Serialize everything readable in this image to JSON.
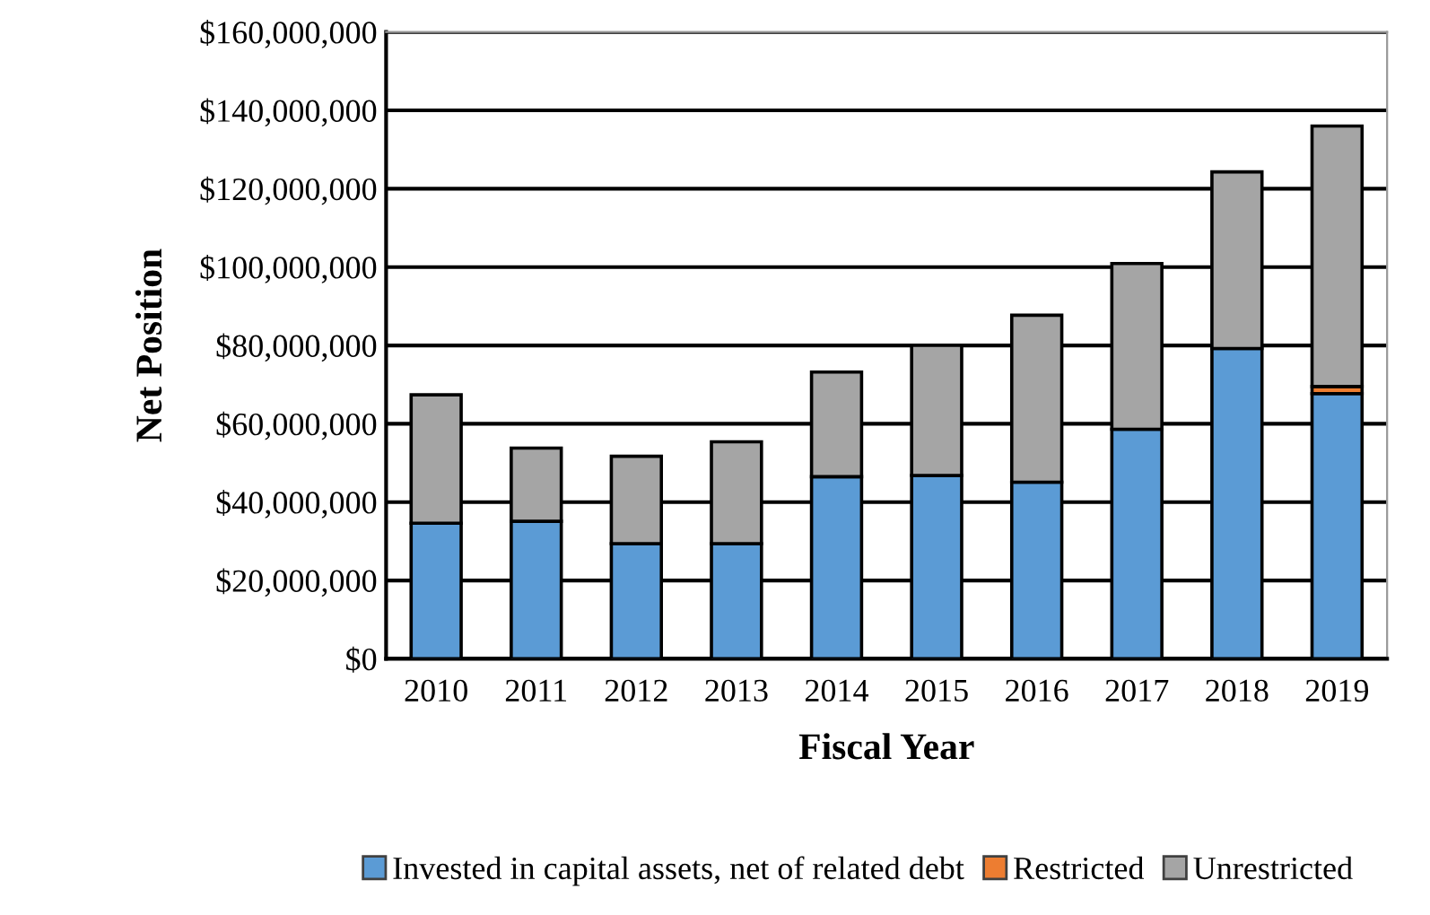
{
  "chart_data": {
    "type": "bar",
    "stacked": true,
    "xlabel": "Fiscal Year",
    "ylabel": "Net Position",
    "categories": [
      "2010",
      "2011",
      "2012",
      "2013",
      "2014",
      "2015",
      "2016",
      "2017",
      "2018",
      "2019"
    ],
    "series": [
      {
        "name": "Invested in capital assets, net of related debt",
        "color": "#5b9bd5",
        "values": [
          34600000,
          35100000,
          29400000,
          29400000,
          46500000,
          46800000,
          45100000,
          58600000,
          79200000,
          67700000
        ]
      },
      {
        "name": "Restricted",
        "color": "#ed7d31",
        "values": [
          null,
          null,
          null,
          null,
          null,
          null,
          null,
          null,
          null,
          1800000
        ]
      },
      {
        "name": "Unrestricted",
        "color": "#a5a5a5",
        "values": [
          32800000,
          18700000,
          22300000,
          26000000,
          26700000,
          33200000,
          42600000,
          42300000,
          45100000,
          66500000
        ]
      }
    ],
    "ylim": [
      0,
      160000000
    ],
    "yticks": [
      {
        "value": 0,
        "label": "$0"
      },
      {
        "value": 20000000,
        "label": "$20,000,000"
      },
      {
        "value": 40000000,
        "label": "$40,000,000"
      },
      {
        "value": 60000000,
        "label": "$60,000,000"
      },
      {
        "value": 80000000,
        "label": "$80,000,000"
      },
      {
        "value": 100000000,
        "label": "$100,000,000"
      },
      {
        "value": 120000000,
        "label": "$120,000,000"
      },
      {
        "value": 140000000,
        "label": "$140,000,000"
      },
      {
        "value": 160000000,
        "label": "$160,000,000"
      }
    ],
    "grid": "y",
    "legend": "bottom"
  }
}
